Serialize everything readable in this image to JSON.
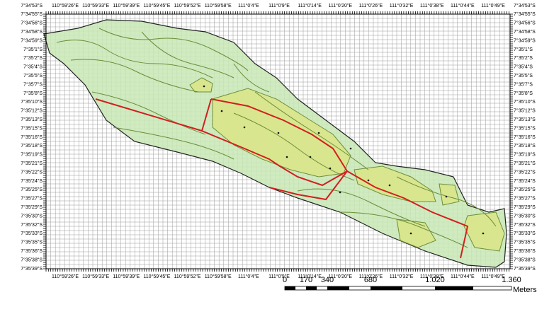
{
  "map": {
    "longitude_labels": [
      "110°59'26\"E",
      "110°59'33\"E",
      "110°59'39\"E",
      "110°59'45\"E",
      "110°59'52\"E",
      "110°59'58\"E",
      "111°0'4\"E",
      "111°0'9\"E",
      "111°0'14\"E",
      "111°0'20\"E",
      "111°0'26\"E",
      "111°0'32\"E",
      "111°0'38\"E",
      "111°0'44\"E",
      "111°0'49\"E"
    ],
    "latitude_labels": [
      "7°34'53\"S",
      "7°34'55\"S",
      "7°34'56\"S",
      "7°34'58\"S",
      "7°34'59\"S",
      "7°35'1\"S",
      "7°35'2\"S",
      "7°35'4\"S",
      "7°35'5\"S",
      "7°35'7\"S",
      "7°35'8\"S",
      "7°35'10\"S",
      "7°35'12\"S",
      "7°35'13\"S",
      "7°35'15\"S",
      "7°35'16\"S",
      "7°35'18\"S",
      "7°35'19\"S",
      "7°35'21\"S",
      "7°35'22\"S",
      "7°35'24\"S",
      "7°35'25\"S",
      "7°35'27\"S",
      "7°35'29\"S",
      "7°35'30\"S",
      "7°35'32\"S",
      "7°35'33\"S",
      "7°35'35\"S",
      "7°35'36\"S",
      "7°35'38\"S",
      "7°35'39\"S"
    ],
    "scale_bar": {
      "labels": [
        "0",
        "170",
        "340",
        "680",
        "1.020",
        "1.360"
      ],
      "unit": "Meters"
    }
  }
}
